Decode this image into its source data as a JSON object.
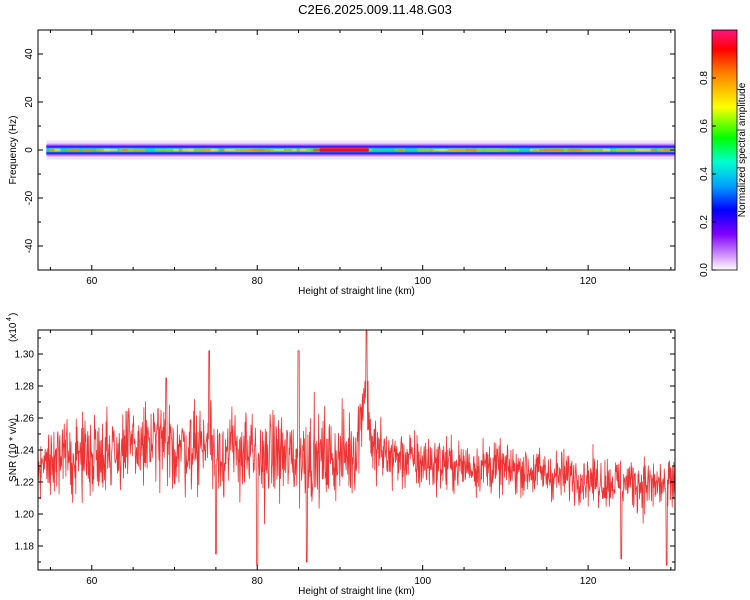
{
  "title": "C2E6.2025.009.11.48.G03",
  "chart_data": [
    {
      "type": "heatmap",
      "xlabel": "Height of straight line (km)",
      "ylabel": "Frequency (Hz)",
      "xlim": [
        53.5,
        130.5
      ],
      "ylim": [
        -50,
        50
      ],
      "x_ticks": [
        60,
        80,
        100,
        120
      ],
      "y_ticks": [
        -40,
        -20,
        0,
        20,
        40
      ],
      "band": {
        "center_hz": 0,
        "half_width_core_hz": 1.5,
        "half_width_outer_hz": 4,
        "peak_region_km": [
          87.5,
          93.5
        ]
      },
      "colorbar": {
        "label": "Normalized spectral amplitude",
        "range": [
          0,
          1
        ],
        "ticks": [
          0.0,
          0.2,
          0.4,
          0.6,
          0.8
        ]
      },
      "grid": false
    },
    {
      "type": "line",
      "xlabel": "Height of straight line (km)",
      "ylabel": "SNR (10 * v/v)",
      "y_multiplier": "(x10",
      "y_multiplier_exp": "4",
      "xlim": [
        53.5,
        130.5
      ],
      "ylim": [
        1.165,
        1.315
      ],
      "x_ticks": [
        60,
        80,
        100,
        120
      ],
      "y_ticks": [
        1.18,
        1.2,
        1.22,
        1.24,
        1.26,
        1.28,
        1.3
      ],
      "series": [
        {
          "color": "#ee3333",
          "x": [
            54,
            56,
            58,
            60,
            62,
            64,
            66,
            68,
            70,
            72,
            74,
            76,
            78,
            80,
            82,
            84,
            86,
            88,
            90,
            92,
            93,
            94,
            96,
            98,
            100,
            102,
            104,
            106,
            108,
            110,
            112,
            114,
            116,
            118,
            120,
            122,
            124,
            126,
            128,
            130
          ],
          "mean": [
            1.232,
            1.234,
            1.236,
            1.238,
            1.24,
            1.24,
            1.243,
            1.245,
            1.24,
            1.242,
            1.245,
            1.238,
            1.24,
            1.232,
            1.238,
            1.235,
            1.236,
            1.234,
            1.236,
            1.24,
            1.282,
            1.24,
            1.236,
            1.234,
            1.232,
            1.232,
            1.23,
            1.23,
            1.23,
            1.228,
            1.228,
            1.226,
            1.224,
            1.224,
            1.222,
            1.22,
            1.22,
            1.219,
            1.218,
            1.218
          ],
          "spread": [
            0.012,
            0.014,
            0.015,
            0.016,
            0.017,
            0.017,
            0.017,
            0.018,
            0.016,
            0.017,
            0.019,
            0.016,
            0.017,
            0.018,
            0.018,
            0.018,
            0.019,
            0.018,
            0.017,
            0.016,
            0.016,
            0.015,
            0.013,
            0.012,
            0.012,
            0.011,
            0.011,
            0.011,
            0.011,
            0.01,
            0.01,
            0.01,
            0.01,
            0.01,
            0.01,
            0.01,
            0.011,
            0.011,
            0.012,
            0.012
          ],
          "spikes": [
            [
              74.2,
              1.302
            ],
            [
              80.0,
              1.168
            ],
            [
              85.0,
              1.302
            ],
            [
              86.0,
              1.17
            ],
            [
              75.0,
              1.175
            ],
            [
              69.0,
              1.285
            ],
            [
              93.2,
              1.315
            ],
            [
              124.0,
              1.172
            ],
            [
              129.5,
              1.168
            ]
          ]
        }
      ],
      "grid": false
    }
  ]
}
